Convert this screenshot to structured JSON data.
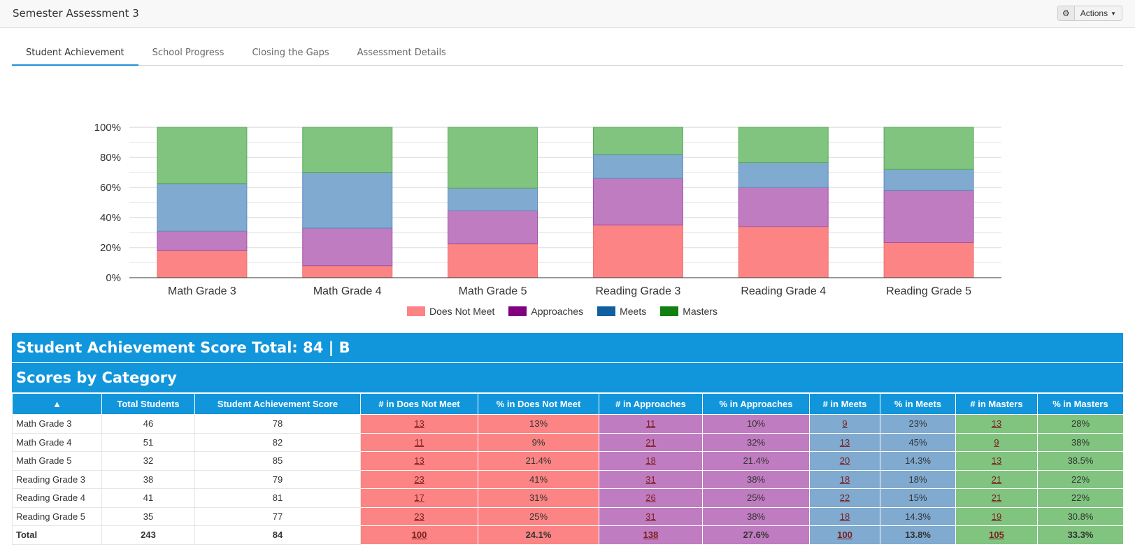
{
  "header": {
    "title": "Semester Assessment 3",
    "actions_label": "Actions"
  },
  "tabs": [
    {
      "label": "Student Achievement",
      "active": true
    },
    {
      "label": "School Progress",
      "active": false
    },
    {
      "label": "Closing the Gaps",
      "active": false
    },
    {
      "label": "Assessment Details",
      "active": false
    }
  ],
  "colors": {
    "does_not_meet": "#fc8484",
    "approaches": "#800080",
    "meets": "#1060a0",
    "masters": "#108010",
    "banner": "#1296db"
  },
  "chart_data": {
    "type": "bar",
    "stacked": true,
    "categories": [
      "Math Grade 3",
      "Math Grade 4",
      "Math Grade 5",
      "Reading Grade 3",
      "Reading Grade 4",
      "Reading Grade 5"
    ],
    "series": [
      {
        "name": "Does Not Meet",
        "values": [
          18,
          8,
          22.5,
          35,
          34,
          23.5
        ]
      },
      {
        "name": "Approaches",
        "values": [
          13,
          25,
          22,
          31,
          26,
          34.5
        ]
      },
      {
        "name": "Meets",
        "values": [
          31.5,
          37,
          15,
          16,
          16.5,
          14
        ]
      },
      {
        "name": "Masters",
        "values": [
          37.5,
          30,
          40.5,
          18,
          23.5,
          28
        ]
      }
    ],
    "yticks": [
      "0%",
      "20%",
      "40%",
      "60%",
      "80%",
      "100%"
    ],
    "ylim": [
      0,
      100
    ],
    "grid": true,
    "legend_position": "bottom"
  },
  "banners": {
    "total": "Student Achievement Score Total: 84 | B",
    "category": "Scores by Category"
  },
  "table": {
    "sort_indicator": "▲",
    "headers": [
      "Total Students",
      "Student Achievement Score",
      "# in Does Not Meet",
      "% in Does Not Meet",
      "# in Approaches",
      "% in Approaches",
      "# in Meets",
      "% in Meets",
      "# in Masters",
      "% in Masters"
    ],
    "rows": [
      {
        "category": "Math Grade 3",
        "total": "46",
        "score": "78",
        "dnm_n": "13",
        "dnm_p": "13%",
        "app_n": "11",
        "app_p": "10%",
        "mts_n": "9",
        "mts_p": "23%",
        "mas_n": "13",
        "mas_p": "28%"
      },
      {
        "category": "Math Grade 4",
        "total": "51",
        "score": "82",
        "dnm_n": "11",
        "dnm_p": "9%",
        "app_n": "21",
        "app_p": "32%",
        "mts_n": "13",
        "mts_p": "45%",
        "mas_n": "9",
        "mas_p": "38%"
      },
      {
        "category": "Math Grade 5",
        "total": "32",
        "score": "85",
        "dnm_n": "13",
        "dnm_p": "21.4%",
        "app_n": "18",
        "app_p": "21.4%",
        "mts_n": "20",
        "mts_p": "14.3%",
        "mas_n": "13",
        "mas_p": "38.5%"
      },
      {
        "category": "Reading Grade 3",
        "total": "38",
        "score": "79",
        "dnm_n": "23",
        "dnm_p": "41%",
        "app_n": "31",
        "app_p": "38%",
        "mts_n": "18",
        "mts_p": "18%",
        "mas_n": "21",
        "mas_p": "22%"
      },
      {
        "category": "Reading Grade 4",
        "total": "41",
        "score": "81",
        "dnm_n": "17",
        "dnm_p": "31%",
        "app_n": "26",
        "app_p": "25%",
        "mts_n": "22",
        "mts_p": "15%",
        "mas_n": "21",
        "mas_p": "22%"
      },
      {
        "category": "Reading Grade 5",
        "total": "35",
        "score": "77",
        "dnm_n": "23",
        "dnm_p": "25%",
        "app_n": "31",
        "app_p": "38%",
        "mts_n": "18",
        "mts_p": "14.3%",
        "mas_n": "19",
        "mas_p": "30.8%"
      }
    ],
    "total_row": {
      "category": "Total",
      "total": "243",
      "score": "84",
      "dnm_n": "100",
      "dnm_p": "24.1%",
      "app_n": "138",
      "app_p": "27.6%",
      "mts_n": "100",
      "mts_p": "13.8%",
      "mas_n": "105",
      "mas_p": "33.3%"
    }
  }
}
